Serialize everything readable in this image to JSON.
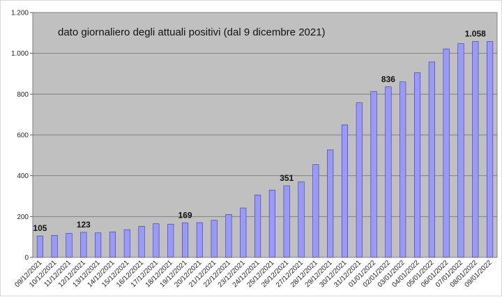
{
  "chart_data": {
    "type": "bar",
    "title": "dato giornaliero degli attuali positivi (dal 9 dicembre 2021)",
    "xlabel": "",
    "ylabel": "",
    "ylim": [
      0,
      1200
    ],
    "ytick_values": [
      0,
      200,
      400,
      600,
      800,
      1000,
      1200
    ],
    "ytick_labels": [
      "0",
      "200",
      "400",
      "600",
      "800",
      "1.000",
      "1.200"
    ],
    "grid": true,
    "colors": {
      "plot_bg": "#c0c0c0",
      "bar": "#9999ff",
      "bar_edge": "#3a3a8c",
      "grid": "#808080"
    },
    "categories": [
      "09/12/2021",
      "10/12/2021",
      "11/12/2021",
      "12/12/2021",
      "13/12/2021",
      "14/12/2021",
      "15/12/2021",
      "16/12/2021",
      "17/12/2021",
      "18/12/2021",
      "19/12/2021",
      "20/12/2021",
      "21/12/2021",
      "22/12/2021",
      "23/12/2021",
      "24/12/2021",
      "25/12/2021",
      "26/12/2021",
      "27/12/2021",
      "28/12/2021",
      "29/12/2021",
      "30/12/2021",
      "31/12/2021",
      "01/01/2022",
      "02/01/2022",
      "03/01/2022",
      "04/01/2022",
      "05/01/2022",
      "06/01/2022",
      "07/01/2022",
      "08/01/2022",
      "09/01/2022"
    ],
    "values": [
      105,
      108,
      118,
      123,
      120,
      125,
      136,
      152,
      165,
      163,
      169,
      170,
      182,
      210,
      242,
      306,
      330,
      351,
      370,
      455,
      527,
      650,
      758,
      813,
      836,
      860,
      905,
      958,
      1022,
      1048,
      1058,
      1058
    ],
    "data_labels": [
      {
        "index": 0,
        "text": "105"
      },
      {
        "index": 3,
        "text": "123"
      },
      {
        "index": 10,
        "text": "169"
      },
      {
        "index": 17,
        "text": "351"
      },
      {
        "index": 24,
        "text": "836"
      },
      {
        "index": 30,
        "text": "1.058"
      }
    ]
  }
}
